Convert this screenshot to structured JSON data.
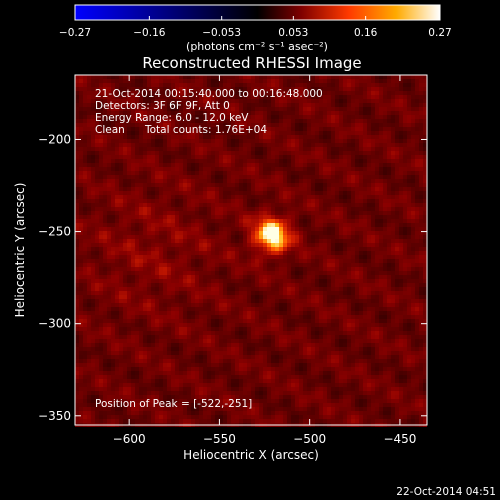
{
  "chart_data": {
    "type": "heatmap",
    "title": "Reconstructed RHESSI Image",
    "xlabel": "Heliocentric X (arcsec)",
    "ylabel": "Heliocentric Y (arcsec)",
    "xlim": [
      -630,
      -435
    ],
    "ylim": [
      -355,
      -165
    ],
    "x_ticks": [
      -600,
      -550,
      -500,
      -450
    ],
    "y_ticks": [
      -200,
      -250,
      -300,
      -350
    ],
    "x_tick_labels": [
      "−600",
      "−550",
      "−500",
      "−450"
    ],
    "y_tick_labels": [
      "−200",
      "−250",
      "−300",
      "−350"
    ],
    "peak": [
      -522,
      -251
    ],
    "colorbar": {
      "min": -0.27,
      "max": 0.27,
      "ticks": [
        -0.27,
        -0.16,
        -0.053,
        0.053,
        0.16,
        0.27
      ],
      "tick_labels": [
        "−0.27",
        "−0.16",
        "−0.053",
        "0.053",
        "0.16",
        "0.27"
      ],
      "unit_label": "(photons cm⁻² s⁻¹ asec⁻²)",
      "colors": [
        "#0000ff",
        "#000000",
        "#7f0000",
        "#ff3a00",
        "#ffaa00",
        "#ffffff"
      ]
    },
    "annotations": {
      "time": "21-Oct-2014 00:15:40.000 to 00:16:48.000",
      "detectors": "Detectors: 3F 6F 9F, Att 0",
      "energy": "Energy Range: 6.0 - 12.0 keV",
      "algorithm": "Clean",
      "counts": "Total counts: 1.76E+04",
      "peak_text": "Position of Peak = [-522,-251]"
    }
  },
  "footer": {
    "timestamp": "22-Oct-2014 04:51"
  }
}
